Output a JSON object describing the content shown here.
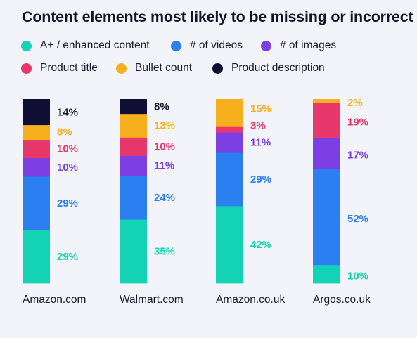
{
  "title": "Content elements most likely to be missing or incorrect",
  "colors": {
    "A+ / enhanced content": "#12d4b4",
    "# of videos": "#2b7ff0",
    "# of images": "#7b3fe4",
    "Product title": "#e8376b",
    "Bullet count": "#f6b01e",
    "Product description": "#0f0f35"
  },
  "chart_data": {
    "type": "bar",
    "stacked": true,
    "title": "Content elements most likely to be missing or incorrect",
    "xlabel": "",
    "ylabel": "",
    "ylim": [
      0,
      100
    ],
    "legend_placement": "top",
    "categories": [
      "Amazon.com",
      "Walmart.com",
      "Amazon.co.uk",
      "Argos.co.uk"
    ],
    "series": [
      {
        "name": "A+ / enhanced content",
        "values": [
          29,
          35,
          42,
          10
        ],
        "labels": [
          "29%",
          "35%",
          "42%",
          "10%"
        ]
      },
      {
        "name": "# of videos",
        "values": [
          29,
          24,
          29,
          52
        ],
        "labels": [
          "29%",
          "24%",
          "29%",
          "52%"
        ]
      },
      {
        "name": "# of images",
        "values": [
          10,
          11,
          11,
          17
        ],
        "labels": [
          "10%",
          "11%",
          "11%",
          "17%"
        ]
      },
      {
        "name": "Product title",
        "values": [
          10,
          10,
          3,
          19
        ],
        "labels": [
          "10%",
          "10%",
          "3%",
          "19%"
        ]
      },
      {
        "name": "Bullet count",
        "values": [
          8,
          13,
          15,
          2
        ],
        "labels": [
          "8%",
          "13%",
          "15%",
          "2%"
        ]
      },
      {
        "name": "Product description",
        "values": [
          14,
          8,
          0,
          0
        ],
        "labels": [
          "14%",
          "8%",
          "",
          ""
        ]
      }
    ]
  }
}
